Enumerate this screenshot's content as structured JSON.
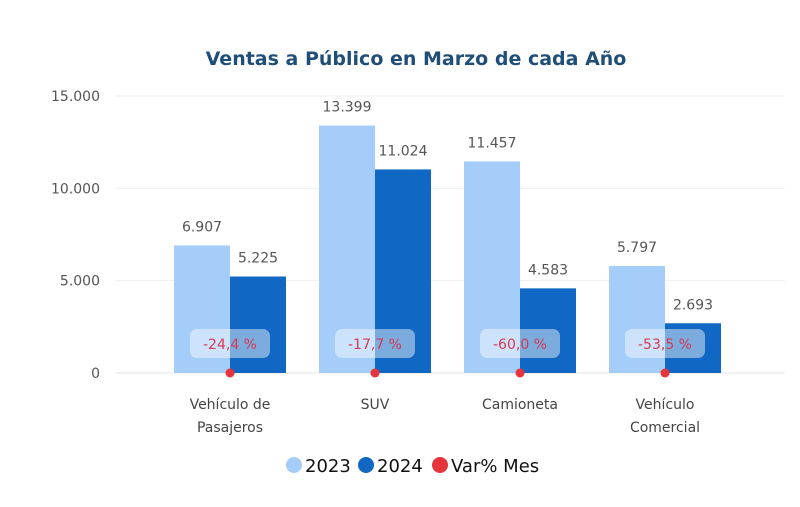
{
  "chart_data": {
    "type": "bar",
    "title": "Ventas a Público en Marzo de cada Año",
    "xlabel": "",
    "ylabel": "",
    "ylim": [
      0,
      15000
    ],
    "yticks": [
      0,
      5000,
      10000,
      15000
    ],
    "ytick_labels": [
      "0",
      "5.000",
      "10.000",
      "15.000"
    ],
    "grid": true,
    "categories": [
      [
        "Vehículo de",
        "Pasajeros"
      ],
      [
        "SUV"
      ],
      [
        "Camioneta"
      ],
      [
        "Vehículo",
        "Comercial"
      ]
    ],
    "series": [
      {
        "name": "2023",
        "color": "#a4cdf9",
        "values": [
          6907,
          13399,
          11457,
          5797
        ],
        "labels": [
          "6.907",
          "13.399",
          "11.457",
          "5.797"
        ]
      },
      {
        "name": "2024",
        "color": "#1167c4",
        "values": [
          5225,
          11024,
          4583,
          2693
        ],
        "labels": [
          "5.225",
          "11.024",
          "4.583",
          "2.693"
        ]
      }
    ],
    "variation": {
      "name": "Var% Mes",
      "color": "#e5343c",
      "values": [
        -24.4,
        -17.7,
        -60.0,
        -53.5
      ],
      "labels": [
        "-24,4 %",
        "-17,7 %",
        "-60,0 %",
        "-53,5 %"
      ]
    },
    "legend": {
      "position": "bottom",
      "items": [
        "2023",
        "2024",
        "Var% Mes"
      ]
    }
  }
}
